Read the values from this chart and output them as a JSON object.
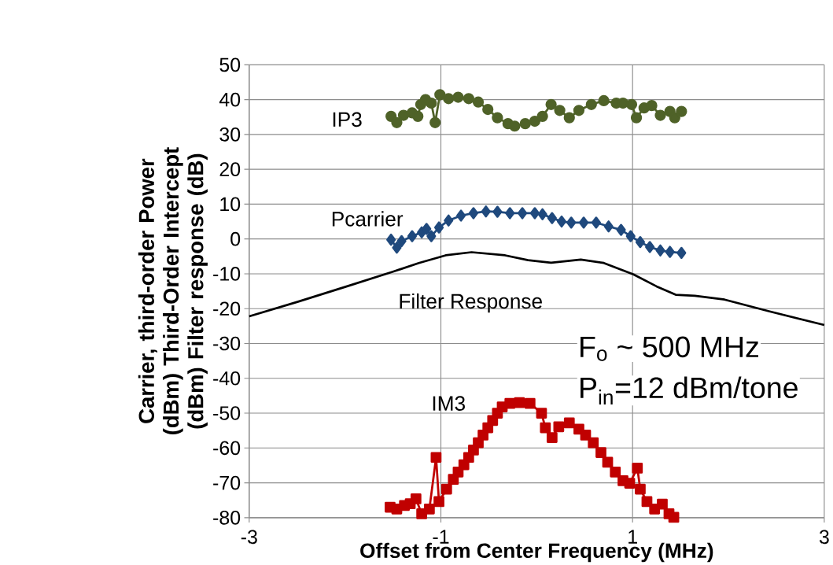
{
  "chart_data": {
    "type": "line",
    "xlabel": "Offset from Center Frequency (MHz)",
    "ylabel": "Carrier, third-order Power (dBm) Third-Order Intercept (dBm) Filter response (dB)",
    "xlim": [
      -3,
      3
    ],
    "xticks": [
      -3,
      -1,
      1,
      3
    ],
    "ylim": [
      -80,
      50
    ],
    "yticks": [
      -80,
      -70,
      -60,
      -50,
      -40,
      -30,
      -20,
      -10,
      0,
      10,
      20,
      30,
      40,
      50
    ],
    "grid": true,
    "annotations": [
      "F$_{o}$ ~ 500 MHz",
      "P$_{in}$=12 dBm/tone"
    ],
    "series": [
      {
        "name": "IP3",
        "color": "#4f6228",
        "marker": "circle",
        "x": [
          -1.52,
          -1.46,
          -1.39,
          -1.3,
          -1.24,
          -1.21,
          -1.16,
          -1.1,
          -1.06,
          -1.01,
          -0.92,
          -0.82,
          -0.71,
          -0.61,
          -0.51,
          -0.41,
          -0.3,
          -0.23,
          -0.12,
          -0.02,
          0.06,
          0.15,
          0.24,
          0.34,
          0.44,
          0.57,
          0.7,
          0.83,
          0.9,
          0.99,
          1.04,
          1.12,
          1.2,
          1.29,
          1.39,
          1.44,
          1.51
        ],
        "values": [
          35.2,
          33.4,
          35.5,
          36.2,
          35.2,
          38.6,
          40,
          39,
          33.4,
          41.4,
          40.3,
          40.7,
          40.3,
          39.3,
          37.2,
          34.8,
          33.1,
          32.4,
          33.1,
          33.8,
          35.2,
          38.6,
          36.9,
          34.8,
          36.9,
          38.6,
          39.7,
          39,
          39,
          38.6,
          34.8,
          37.6,
          38.3,
          35.5,
          36.6,
          34.8,
          36.6
        ]
      },
      {
        "name": "Pcarrier",
        "color": "#1f497d",
        "marker": "diamond",
        "x": [
          -1.52,
          -1.46,
          -1.41,
          -1.3,
          -1.2,
          -1.15,
          -1.1,
          -1.02,
          -0.92,
          -0.79,
          -0.66,
          -0.53,
          -0.41,
          -0.28,
          -0.15,
          -0.02,
          0.06,
          0.16,
          0.26,
          0.36,
          0.49,
          0.62,
          0.75,
          0.88,
          0.98,
          1.08,
          1.18,
          1.29,
          1.39,
          1.51
        ],
        "values": [
          -0.2,
          -2.5,
          -0.6,
          0.8,
          1.9,
          2.9,
          0.8,
          3.3,
          5.3,
          6.7,
          7.4,
          7.9,
          7.8,
          7.4,
          7.4,
          7.4,
          7.1,
          6.0,
          5.0,
          4.7,
          4.7,
          4.7,
          3.6,
          2.6,
          0.8,
          -0.9,
          -2.3,
          -3.3,
          -3.7,
          -4.0
        ]
      },
      {
        "name": "Filter Response",
        "color": "#000000",
        "marker": "none",
        "x": [
          -3,
          -2.49,
          -1.98,
          -1.5,
          -1.23,
          -0.95,
          -0.68,
          -0.33,
          -0.09,
          0.15,
          0.46,
          0.7,
          1.01,
          1.25,
          1.45,
          1.65,
          1.96,
          2.43,
          3.0
        ],
        "values": [
          -22.2,
          -18,
          -13.6,
          -9.4,
          -6.9,
          -4.7,
          -3.8,
          -4.7,
          -6.1,
          -6.8,
          -5.9,
          -6.9,
          -10.2,
          -13.6,
          -16,
          -16.3,
          -17.4,
          -20.8,
          -24.7
        ]
      },
      {
        "name": "IM3",
        "color": "#c00000",
        "marker": "square",
        "x": [
          -1.53,
          -1.46,
          -1.38,
          -1.32,
          -1.26,
          -1.2,
          -1.12,
          -1.05,
          -1.02,
          -0.94,
          -0.87,
          -0.82,
          -0.76,
          -0.71,
          -0.66,
          -0.61,
          -0.56,
          -0.51,
          -0.46,
          -0.41,
          -0.36,
          -0.28,
          -0.18,
          -0.07,
          0.05,
          0.09,
          0.16,
          0.23,
          0.34,
          0.44,
          0.51,
          0.59,
          0.67,
          0.74,
          0.82,
          0.9,
          0.97,
          1.05,
          1.08,
          1.15,
          1.23,
          1.31,
          1.38,
          1.43
        ],
        "values": [
          -77,
          -77.5,
          -76.5,
          -76,
          -74.6,
          -78.9,
          -77.5,
          -62.7,
          -75.4,
          -71.8,
          -69,
          -66.9,
          -64.8,
          -62.7,
          -60.6,
          -58.5,
          -56.3,
          -54.2,
          -52.1,
          -50,
          -48.2,
          -47.2,
          -47,
          -47.2,
          -50,
          -54.2,
          -57,
          -53.9,
          -52.8,
          -54.6,
          -56.3,
          -58.5,
          -61.3,
          -64.1,
          -66.9,
          -69.4,
          -70.1,
          -65.8,
          -71.8,
          -75.4,
          -77.5,
          -76.1,
          -78.9,
          -79.9
        ]
      }
    ]
  }
}
